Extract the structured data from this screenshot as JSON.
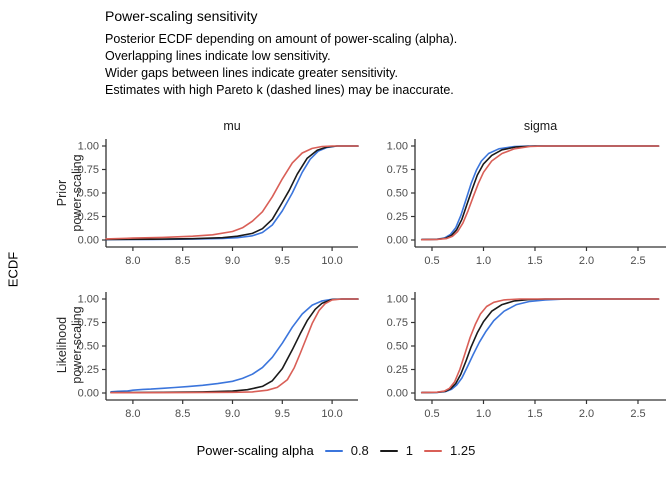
{
  "chart_data": {
    "type": "line",
    "title": "Power-scaling sensitivity",
    "subtitle_lines": [
      "Posterior ECDF depending on amount of power-scaling (alpha).",
      "Overlapping lines indicate low sensitivity.",
      "Wider gaps between lines indicate greater sensitivity.",
      "Estimates with high Pareto k (dashed lines) may be inaccurate."
    ],
    "ylabel": "ECDF",
    "facet_cols": [
      "mu",
      "sigma"
    ],
    "facet_rows": [
      [
        "Prior",
        "power-scaling"
      ],
      [
        "Likelihood",
        "power-scaling"
      ]
    ],
    "legend": {
      "title": "Power-scaling alpha",
      "entries": [
        {
          "label": "0.8",
          "color": "#3b75dc"
        },
        {
          "label": "1",
          "color": "#1a1a1a"
        },
        {
          "label": "1.25",
          "color": "#d95f57"
        }
      ]
    },
    "style": {
      "axis_line_color": "#333333",
      "tick_label_color": "#4d4d4d",
      "grid": "off",
      "legend_position": "bottom",
      "line_style": "solid"
    },
    "panels": [
      {
        "row": "Prior power-scaling",
        "col": "mu",
        "xlim": [
          7.73,
          10.26
        ],
        "ylim": [
          0,
          1
        ],
        "xticks": [
          "8.0",
          "8.5",
          "9.0",
          "9.5",
          "10.0"
        ],
        "yticks": [
          "0.00",
          "0.25",
          "0.50",
          "0.75",
          "1.00"
        ],
        "series": [
          {
            "name": "0.8",
            "points": [
              [
                7.73,
                0.004
              ],
              [
                8.2,
                0.006
              ],
              [
                8.6,
                0.01
              ],
              [
                8.9,
                0.016
              ],
              [
                9.05,
                0.025
              ],
              [
                9.2,
                0.045
              ],
              [
                9.3,
                0.08
              ],
              [
                9.4,
                0.16
              ],
              [
                9.5,
                0.31
              ],
              [
                9.6,
                0.5
              ],
              [
                9.7,
                0.72
              ],
              [
                9.78,
                0.86
              ],
              [
                9.86,
                0.945
              ],
              [
                9.95,
                0.985
              ],
              [
                10.05,
                1.0
              ],
              [
                10.26,
                1.0
              ]
            ]
          },
          {
            "name": "1",
            "points": [
              [
                7.73,
                0.006
              ],
              [
                8.2,
                0.009
              ],
              [
                8.6,
                0.014
              ],
              [
                8.9,
                0.025
              ],
              [
                9.05,
                0.04
              ],
              [
                9.2,
                0.07
              ],
              [
                9.3,
                0.12
              ],
              [
                9.4,
                0.22
              ],
              [
                9.5,
                0.4
              ],
              [
                9.57,
                0.53
              ],
              [
                9.65,
                0.7
              ],
              [
                9.75,
                0.87
              ],
              [
                9.85,
                0.955
              ],
              [
                9.95,
                0.99
              ],
              [
                10.05,
                1.0
              ],
              [
                10.26,
                1.0
              ]
            ]
          },
          {
            "name": "1.25",
            "points": [
              [
                7.73,
                0.012
              ],
              [
                8.0,
                0.02
              ],
              [
                8.3,
                0.028
              ],
              [
                8.6,
                0.04
              ],
              [
                8.8,
                0.055
              ],
              [
                9.0,
                0.09
              ],
              [
                9.1,
                0.13
              ],
              [
                9.2,
                0.2
              ],
              [
                9.3,
                0.3
              ],
              [
                9.4,
                0.46
              ],
              [
                9.5,
                0.65
              ],
              [
                9.6,
                0.82
              ],
              [
                9.7,
                0.925
              ],
              [
                9.8,
                0.975
              ],
              [
                9.9,
                0.995
              ],
              [
                10.0,
                1.0
              ],
              [
                10.26,
                1.0
              ]
            ]
          }
        ]
      },
      {
        "row": "Prior power-scaling",
        "col": "sigma",
        "xlim": [
          0.335,
          2.772
        ],
        "ylim": [
          0,
          1
        ],
        "xticks": [
          "0.5",
          "1.0",
          "1.5",
          "2.0",
          "2.5"
        ],
        "yticks": [
          "0.00",
          "0.25",
          "0.50",
          "0.75",
          "1.00"
        ],
        "series": [
          {
            "name": "0.8",
            "points": [
              [
                0.4,
                0.004
              ],
              [
                0.55,
                0.008
              ],
              [
                0.62,
                0.02
              ],
              [
                0.68,
                0.06
              ],
              [
                0.73,
                0.13
              ],
              [
                0.78,
                0.26
              ],
              [
                0.83,
                0.43
              ],
              [
                0.88,
                0.6
              ],
              [
                0.93,
                0.74
              ],
              [
                0.98,
                0.84
              ],
              [
                1.05,
                0.92
              ],
              [
                1.15,
                0.97
              ],
              [
                1.3,
                0.995
              ],
              [
                1.45,
                1.0
              ],
              [
                2.7,
                1.0
              ]
            ]
          },
          {
            "name": "1",
            "points": [
              [
                0.4,
                0.004
              ],
              [
                0.55,
                0.007
              ],
              [
                0.63,
                0.018
              ],
              [
                0.69,
                0.05
              ],
              [
                0.74,
                0.11
              ],
              [
                0.79,
                0.22
              ],
              [
                0.84,
                0.38
              ],
              [
                0.89,
                0.54
              ],
              [
                0.94,
                0.69
              ],
              [
                1.0,
                0.81
              ],
              [
                1.08,
                0.9
              ],
              [
                1.18,
                0.96
              ],
              [
                1.32,
                0.99
              ],
              [
                1.5,
                1.0
              ],
              [
                2.7,
                1.0
              ]
            ]
          },
          {
            "name": "1.25",
            "points": [
              [
                0.4,
                0.003
              ],
              [
                0.55,
                0.006
              ],
              [
                0.64,
                0.015
              ],
              [
                0.7,
                0.04
              ],
              [
                0.75,
                0.09
              ],
              [
                0.8,
                0.18
              ],
              [
                0.85,
                0.31
              ],
              [
                0.9,
                0.46
              ],
              [
                0.95,
                0.6
              ],
              [
                1.0,
                0.72
              ],
              [
                1.08,
                0.84
              ],
              [
                1.18,
                0.92
              ],
              [
                1.3,
                0.97
              ],
              [
                1.45,
                0.995
              ],
              [
                1.6,
                1.0
              ],
              [
                2.7,
                1.0
              ]
            ]
          }
        ]
      },
      {
        "row": "Likelihood power-scaling",
        "col": "mu",
        "xlim": [
          7.73,
          10.26
        ],
        "ylim": [
          0,
          1
        ],
        "xticks": [
          "8.0",
          "8.5",
          "9.0",
          "9.5",
          "10.0"
        ],
        "yticks": [
          "0.00",
          "0.25",
          "0.50",
          "0.75",
          "1.00"
        ],
        "series": [
          {
            "name": "0.8",
            "points": [
              [
                7.78,
                0.013
              ],
              [
                7.85,
                0.018
              ],
              [
                7.95,
                0.022
              ],
              [
                8.0,
                0.03
              ],
              [
                8.1,
                0.038
              ],
              [
                8.18,
                0.042
              ],
              [
                8.3,
                0.05
              ],
              [
                8.42,
                0.058
              ],
              [
                8.55,
                0.068
              ],
              [
                8.7,
                0.082
              ],
              [
                8.85,
                0.1
              ],
              [
                9.0,
                0.125
              ],
              [
                9.1,
                0.155
              ],
              [
                9.2,
                0.2
              ],
              [
                9.3,
                0.27
              ],
              [
                9.4,
                0.38
              ],
              [
                9.5,
                0.53
              ],
              [
                9.6,
                0.7
              ],
              [
                9.7,
                0.84
              ],
              [
                9.8,
                0.935
              ],
              [
                9.9,
                0.98
              ],
              [
                10.0,
                0.997
              ],
              [
                10.1,
                1.0
              ],
              [
                10.26,
                1.0
              ]
            ]
          },
          {
            "name": "1",
            "points": [
              [
                7.78,
                0.004
              ],
              [
                8.3,
                0.007
              ],
              [
                8.7,
                0.012
              ],
              [
                9.0,
                0.02
              ],
              [
                9.15,
                0.035
              ],
              [
                9.3,
                0.07
              ],
              [
                9.4,
                0.13
              ],
              [
                9.5,
                0.26
              ],
              [
                9.6,
                0.46
              ],
              [
                9.68,
                0.63
              ],
              [
                9.75,
                0.77
              ],
              [
                9.83,
                0.89
              ],
              [
                9.9,
                0.955
              ],
              [
                10.0,
                0.995
              ],
              [
                10.1,
                1.0
              ],
              [
                10.26,
                1.0
              ]
            ]
          },
          {
            "name": "1.25",
            "points": [
              [
                7.78,
                0.003
              ],
              [
                8.5,
                0.004
              ],
              [
                9.0,
                0.007
              ],
              [
                9.2,
                0.012
              ],
              [
                9.35,
                0.03
              ],
              [
                9.45,
                0.06
              ],
              [
                9.55,
                0.14
              ],
              [
                9.62,
                0.27
              ],
              [
                9.68,
                0.42
              ],
              [
                9.74,
                0.58
              ],
              [
                9.8,
                0.74
              ],
              [
                9.87,
                0.88
              ],
              [
                9.93,
                0.95
              ],
              [
                10.0,
                0.99
              ],
              [
                10.1,
                1.0
              ],
              [
                10.26,
                1.0
              ]
            ]
          }
        ]
      },
      {
        "row": "Likelihood power-scaling",
        "col": "sigma",
        "xlim": [
          0.335,
          2.772
        ],
        "ylim": [
          0,
          1
        ],
        "xticks": [
          "0.5",
          "1.0",
          "1.5",
          "2.0",
          "2.5"
        ],
        "yticks": [
          "0.00",
          "0.25",
          "0.50",
          "0.75",
          "1.00"
        ],
        "series": [
          {
            "name": "0.8",
            "points": [
              [
                0.4,
                0.004
              ],
              [
                0.55,
                0.006
              ],
              [
                0.63,
                0.015
              ],
              [
                0.69,
                0.04
              ],
              [
                0.74,
                0.085
              ],
              [
                0.79,
                0.16
              ],
              [
                0.84,
                0.27
              ],
              [
                0.9,
                0.41
              ],
              [
                0.96,
                0.54
              ],
              [
                1.02,
                0.65
              ],
              [
                1.1,
                0.77
              ],
              [
                1.2,
                0.87
              ],
              [
                1.32,
                0.94
              ],
              [
                1.45,
                0.975
              ],
              [
                1.6,
                0.99
              ],
              [
                1.8,
                1.0
              ],
              [
                2.7,
                1.0
              ]
            ]
          },
          {
            "name": "1",
            "points": [
              [
                0.4,
                0.004
              ],
              [
                0.55,
                0.007
              ],
              [
                0.63,
                0.018
              ],
              [
                0.68,
                0.045
              ],
              [
                0.73,
                0.1
              ],
              [
                0.78,
                0.2
              ],
              [
                0.83,
                0.34
              ],
              [
                0.88,
                0.49
              ],
              [
                0.94,
                0.64
              ],
              [
                1.0,
                0.76
              ],
              [
                1.08,
                0.87
              ],
              [
                1.18,
                0.94
              ],
              [
                1.3,
                0.98
              ],
              [
                1.45,
                0.995
              ],
              [
                1.6,
                1.0
              ],
              [
                2.7,
                1.0
              ]
            ]
          },
          {
            "name": "1.25",
            "points": [
              [
                0.4,
                0.004
              ],
              [
                0.55,
                0.008
              ],
              [
                0.62,
                0.02
              ],
              [
                0.67,
                0.05
              ],
              [
                0.72,
                0.12
              ],
              [
                0.77,
                0.25
              ],
              [
                0.82,
                0.42
              ],
              [
                0.87,
                0.59
              ],
              [
                0.92,
                0.73
              ],
              [
                0.97,
                0.84
              ],
              [
                1.03,
                0.92
              ],
              [
                1.1,
                0.965
              ],
              [
                1.2,
                0.99
              ],
              [
                1.35,
                1.0
              ],
              [
                2.7,
                1.0
              ]
            ]
          }
        ]
      }
    ]
  }
}
